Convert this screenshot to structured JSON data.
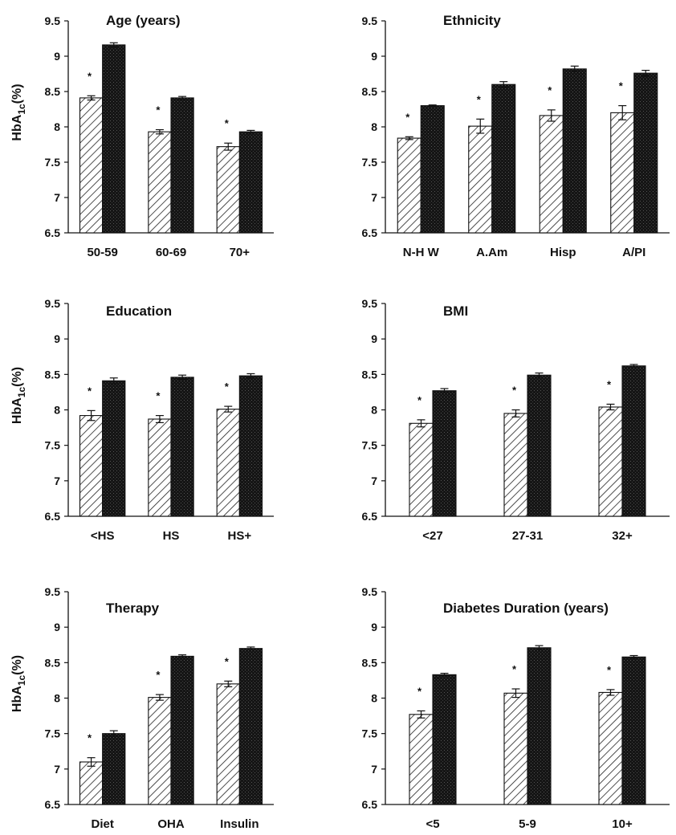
{
  "colors": {
    "axis": "#111111",
    "bar_outline": "#111111",
    "hatch": "#222222",
    "solid": "#151515",
    "background": "#ffffff"
  },
  "chart_data": [
    {
      "type": "bar",
      "title": "Age (years)",
      "ylabel": "HbA1c(%)",
      "ylabel_main": "HbA",
      "ylabel_sub": "1c",
      "ylabel_suffix": "(%)",
      "ylim": [
        6.5,
        9.5
      ],
      "yticks": [
        "6.5",
        "7",
        "7.5",
        "8",
        "8.5",
        "9",
        "9.5"
      ],
      "categories": [
        "50-59",
        "60-69",
        "70+"
      ],
      "series": [
        {
          "values": [
            8.41,
            7.93,
            7.72
          ],
          "errors": [
            0.03,
            0.03,
            0.05
          ],
          "fill": "hatched"
        },
        {
          "values": [
            9.16,
            8.41,
            7.93
          ],
          "errors": [
            0.03,
            0.02,
            0.02
          ],
          "fill": "solid"
        }
      ],
      "significance_marker": "*",
      "marked_series": 0
    },
    {
      "type": "bar",
      "title": "Ethnicity",
      "ylabel": "",
      "ylim": [
        6.5,
        9.5
      ],
      "yticks": [
        "6.5",
        "7",
        "7.5",
        "8",
        "8.5",
        "9",
        "9.5"
      ],
      "categories": [
        "N-H W",
        "A.Am",
        "Hisp",
        "A/PI"
      ],
      "series": [
        {
          "values": [
            7.84,
            8.01,
            8.16,
            8.2
          ],
          "errors": [
            0.02,
            0.1,
            0.08,
            0.1
          ],
          "fill": "hatched"
        },
        {
          "values": [
            8.3,
            8.6,
            8.82,
            8.76
          ],
          "errors": [
            0.01,
            0.04,
            0.04,
            0.04
          ],
          "fill": "solid"
        }
      ],
      "significance_marker": "*",
      "marked_series": 0
    },
    {
      "type": "bar",
      "title": "Education",
      "ylabel": "HbA1c(%)",
      "ylabel_main": "HbA",
      "ylabel_sub": "1c",
      "ylabel_suffix": "(%)",
      "ylim": [
        6.5,
        9.5
      ],
      "yticks": [
        "6.5",
        "7",
        "7.5",
        "8",
        "8.5",
        "9",
        "9.5"
      ],
      "categories": [
        "<HS",
        "HS",
        "HS+"
      ],
      "series": [
        {
          "values": [
            7.92,
            7.87,
            8.01
          ],
          "errors": [
            0.07,
            0.05,
            0.04
          ],
          "fill": "hatched"
        },
        {
          "values": [
            8.41,
            8.46,
            8.48
          ],
          "errors": [
            0.04,
            0.03,
            0.03
          ],
          "fill": "solid"
        }
      ],
      "significance_marker": "*",
      "marked_series": 0
    },
    {
      "type": "bar",
      "title": "BMI",
      "ylabel": "",
      "ylim": [
        6.5,
        9.5
      ],
      "yticks": [
        "6.5",
        "7",
        "7.5",
        "8",
        "8.5",
        "9",
        "9.5"
      ],
      "categories": [
        "<27",
        "27-31",
        "32+"
      ],
      "series": [
        {
          "values": [
            7.81,
            7.95,
            8.04
          ],
          "errors": [
            0.05,
            0.05,
            0.04
          ],
          "fill": "hatched"
        },
        {
          "values": [
            8.27,
            8.49,
            8.62
          ],
          "errors": [
            0.03,
            0.03,
            0.02
          ],
          "fill": "solid"
        }
      ],
      "significance_marker": "*",
      "marked_series": 0
    },
    {
      "type": "bar",
      "title": "Therapy",
      "ylabel": "HbA1c(%)",
      "ylabel_main": "HbA",
      "ylabel_sub": "1c",
      "ylabel_suffix": "(%)",
      "ylim": [
        6.5,
        9.5
      ],
      "yticks": [
        "6.5",
        "7",
        "7.5",
        "8",
        "8.5",
        "9",
        "9.5"
      ],
      "categories": [
        "Diet",
        "OHA",
        "Insulin"
      ],
      "series": [
        {
          "values": [
            7.1,
            8.01,
            8.2
          ],
          "errors": [
            0.06,
            0.04,
            0.04
          ],
          "fill": "hatched"
        },
        {
          "values": [
            7.5,
            8.59,
            8.7
          ],
          "errors": [
            0.04,
            0.02,
            0.02
          ],
          "fill": "solid"
        }
      ],
      "significance_marker": "*",
      "marked_series": 0
    },
    {
      "type": "bar",
      "title": "Diabetes Duration (years)",
      "ylabel": "",
      "ylim": [
        6.5,
        9.5
      ],
      "yticks": [
        "6.5",
        "7",
        "7.5",
        "8",
        "8.5",
        "9",
        "9.5"
      ],
      "categories": [
        "<5",
        "5-9",
        "10+"
      ],
      "series": [
        {
          "values": [
            7.77,
            8.07,
            8.08
          ],
          "errors": [
            0.05,
            0.06,
            0.04
          ],
          "fill": "hatched"
        },
        {
          "values": [
            8.33,
            8.71,
            8.58
          ],
          "errors": [
            0.02,
            0.03,
            0.02
          ],
          "fill": "solid"
        }
      ],
      "significance_marker": "*",
      "marked_series": 0
    }
  ]
}
